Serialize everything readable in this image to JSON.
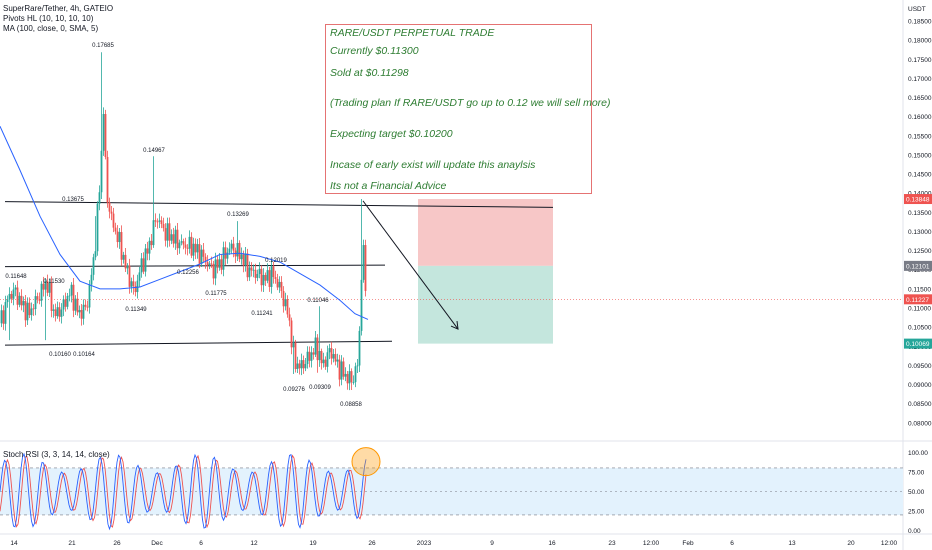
{
  "header": {
    "currency": "USDT",
    "symbol_line": "SuperRare/Tether, 4h, GATEIO",
    "indicator_pivots": "Pivots HL (10, 10, 10, 10)",
    "indicator_ma": "MA (100, close, 0, SMA, 5)",
    "rsi_label": "Stoch RSI (3, 3, 14, 14, close)"
  },
  "annotation": {
    "lines": [
      "RARE/USDT PERPETUAL TRADE",
      "Currently $0.11300",
      "Sold at $0.11298",
      "(Trading plan If RARE/USDT go up to 0.12 we will sell more)",
      "Expecting target $0.10200",
      "Incase of early exist will update this anaylsis",
      "Its not a Financial Advice"
    ]
  },
  "colors": {
    "up": "#26a69a",
    "down": "#ef5350",
    "ma": "#2962ff",
    "stop_zone": "#f7c7c7",
    "target_zone": "#c4e6dd",
    "rsi_k": "#2962ff",
    "rsi_d": "#ef5350",
    "rsi_band": "#e3f2fd",
    "annotation_text": "#2e7d32",
    "annotation_border": "#e57373"
  },
  "chart_data": {
    "type": "candlestick",
    "title": "SuperRare/Tether, 4h, GATEIO",
    "price_axis": {
      "ylim": [
        0.0755,
        0.1905
      ],
      "ticks": [
        "0.18500",
        "0.18000",
        "0.17500",
        "0.17000",
        "0.16500",
        "0.16000",
        "0.15500",
        "0.15000",
        "0.14500",
        "0.14000",
        "0.13500",
        "0.13000",
        "0.12500",
        "0.12000",
        "0.11500",
        "0.11000",
        "0.10500",
        "0.10000",
        "0.09500",
        "0.09000",
        "0.08500",
        "0.08000"
      ],
      "tags": [
        {
          "label": "0.13848",
          "value": 0.13848,
          "color": "#ef5350"
        },
        {
          "label": "0.12101",
          "value": 0.12101,
          "color": "#787b86"
        },
        {
          "label": "0.11227",
          "value": 0.11227,
          "color": "#ef5350"
        },
        {
          "label": "0.10069",
          "value": 0.10069,
          "color": "#26a69a"
        }
      ]
    },
    "x_ticks": [
      "14",
      "21",
      "26",
      "Dec",
      "6",
      "12",
      "19",
      "26",
      "2023",
      "9",
      "16",
      "23",
      "12:00",
      "Feb",
      "6",
      "13",
      "20",
      "12:00"
    ],
    "candles_last_close": 0.11227,
    "pivots": [
      {
        "label": "0.17685",
        "value": 0.17685,
        "type": "high"
      },
      {
        "label": "0.14967",
        "value": 0.14967,
        "type": "high"
      },
      {
        "label": "0.13675",
        "value": 0.13675,
        "type": "high"
      },
      {
        "label": "0.13269",
        "value": 0.13269,
        "type": "high"
      },
      {
        "label": "0.12256",
        "value": 0.12256,
        "type": "high"
      },
      {
        "label": "0.12019",
        "value": 0.12019,
        "type": "high"
      },
      {
        "label": "0.11648",
        "value": 0.11648,
        "type": "high"
      },
      {
        "label": "0.11530",
        "value": 0.1153,
        "type": "high"
      },
      {
        "label": "0.11349",
        "value": 0.11349,
        "type": "low"
      },
      {
        "label": "0.11775",
        "value": 0.11775,
        "type": "low"
      },
      {
        "label": "0.11241",
        "value": 0.11241,
        "type": "low"
      },
      {
        "label": "0.11046",
        "value": 0.11046,
        "type": "high"
      },
      {
        "label": "0.10160",
        "value": 0.1016,
        "type": "low"
      },
      {
        "label": "0.10164",
        "value": 0.10164,
        "type": "low"
      },
      {
        "label": "0.09276",
        "value": 0.09276,
        "type": "low"
      },
      {
        "label": "0.09309",
        "value": 0.09309,
        "type": "low"
      },
      {
        "label": "0.08858",
        "value": 0.08858,
        "type": "low"
      }
    ],
    "trade_plan": {
      "entry": 0.12101,
      "stop": 0.13848,
      "target": 0.10069
    },
    "rsi_axis": {
      "ticks": [
        "100.00",
        "75.00",
        "50.00",
        "25.00",
        "0.00"
      ],
      "ylim": [
        -3,
        108
      ],
      "upper_band": 80,
      "lower_band": 20
    }
  }
}
